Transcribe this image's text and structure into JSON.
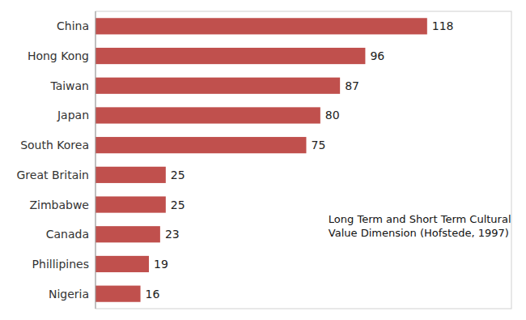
{
  "chart_data": {
    "type": "bar",
    "orientation": "horizontal",
    "categories": [
      "Nigeria",
      "Phillipines",
      "Canada",
      "Zimbabwe",
      "Great Britain",
      "South Korea",
      "Japan",
      "Taiwan",
      "Hong Kong",
      "China"
    ],
    "values": [
      16,
      19,
      23,
      25,
      25,
      75,
      80,
      87,
      96,
      118
    ],
    "color": "#c0504d",
    "xlim": [
      0,
      148
    ],
    "data_labels": true,
    "tick_labels": "y",
    "grid": false,
    "annotation": "Long Term and Short Term Cultural\nValue Dimension (Hofstede, 1997)"
  }
}
